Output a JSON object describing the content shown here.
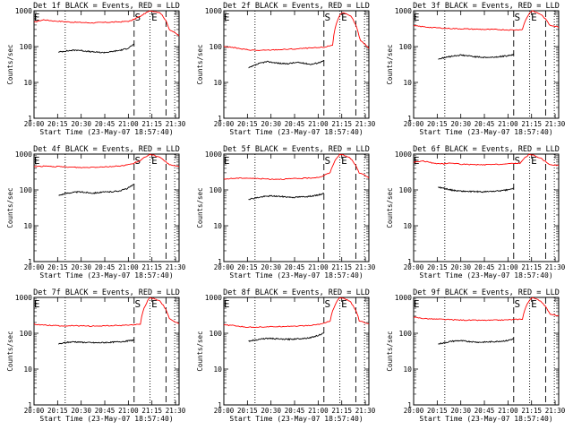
{
  "chart_data": [
    {
      "type": "line",
      "title": "Det 1f BLACK = Events, RED = LLD",
      "xlabel": "Start Time (23-May-07 18:57:40)",
      "ylabel": "Counts/sec",
      "xticks": [
        "20:00",
        "20:15",
        "20:30",
        "20:45",
        "21:00",
        "21:15",
        "21:30"
      ],
      "yticks": [
        "1",
        "10",
        "100",
        "1000"
      ],
      "yscale": "log",
      "ylim": [
        1,
        1000
      ],
      "markers": [
        "S",
        "E",
        "E"
      ],
      "series": [
        {
          "name": "LLD",
          "color": "#ff0000",
          "values": [
            480,
            560,
            520,
            500,
            480,
            470,
            460,
            470,
            480,
            490,
            520,
            700,
            1000,
            900,
            300,
            200
          ]
        },
        {
          "name": "Events",
          "color": "#000000",
          "values": [
            70,
            75,
            78,
            80,
            76,
            72,
            70,
            68,
            70,
            75,
            80,
            90,
            115
          ]
        }
      ]
    },
    {
      "type": "line",
      "title": "Det 2f BLACK = Events, RED = LLD",
      "xlabel": "Start Time (23-May-07 18:57:40)",
      "ylabel": "Counts/sec",
      "xticks": [
        "20:00",
        "20:15",
        "20:30",
        "20:45",
        "21:00",
        "21:15",
        "21:30"
      ],
      "yticks": [
        "1",
        "10",
        "100",
        "1000"
      ],
      "yscale": "log",
      "ylim": [
        1,
        1000
      ],
      "markers": [
        "S",
        "E",
        "E"
      ],
      "series": [
        {
          "name": "LLD",
          "color": "#ff0000",
          "values": [
            100,
            95,
            85,
            80,
            78,
            80,
            82,
            84,
            86,
            90,
            92,
            95,
            110,
            900,
            700,
            150,
            90
          ]
        },
        {
          "name": "Events",
          "color": "#000000",
          "values": [
            25,
            30,
            35,
            38,
            36,
            34,
            33,
            35,
            36,
            34,
            32,
            35,
            40
          ]
        }
      ]
    },
    {
      "type": "line",
      "title": "Det 3f BLACK = Events, RED = LLD",
      "xlabel": "Start Time (23-May-07 18:57:40)",
      "ylabel": "Counts/sec",
      "xticks": [
        "20:00",
        "20:15",
        "20:30",
        "20:45",
        "21:00",
        "21:15",
        "21:30"
      ],
      "yticks": [
        "1",
        "10",
        "100",
        "1000"
      ],
      "yscale": "log",
      "ylim": [
        1,
        1000
      ],
      "markers": [
        "S",
        "E",
        "E"
      ],
      "series": [
        {
          "name": "LLD",
          "color": "#ff0000",
          "values": [
            380,
            360,
            340,
            330,
            320,
            315,
            310,
            305,
            300,
            300,
            295,
            290,
            300,
            1000,
            800,
            400,
            350
          ]
        },
        {
          "name": "Events",
          "color": "#000000",
          "values": [
            45,
            50,
            55,
            58,
            55,
            52,
            50,
            50,
            52,
            55,
            60
          ]
        }
      ]
    },
    {
      "type": "line",
      "title": "Det 4f BLACK = Events, RED = LLD",
      "xlabel": "Start Time (23-May-07 18:57:40)",
      "ylabel": "Counts/sec",
      "xticks": [
        "20:00",
        "20:15",
        "20:30",
        "20:45",
        "21:00",
        "21:15",
        "21:30"
      ],
      "yticks": [
        "1",
        "10",
        "100",
        "1000"
      ],
      "yscale": "log",
      "ylim": [
        1,
        1000
      ],
      "markers": [
        "S",
        "E",
        "E"
      ],
      "series": [
        {
          "name": "LLD",
          "color": "#ff0000",
          "values": [
            450,
            460,
            450,
            440,
            430,
            420,
            430,
            440,
            450,
            470,
            520,
            650,
            1000,
            800,
            500,
            450
          ]
        },
        {
          "name": "Events",
          "color": "#000000",
          "values": [
            70,
            80,
            85,
            88,
            85,
            82,
            85,
            88,
            90,
            95,
            110,
            140
          ]
        }
      ]
    },
    {
      "type": "line",
      "title": "Det 5f BLACK = Events, RED = LLD",
      "xlabel": "Start Time (23-May-07 18:57:40)",
      "ylabel": "Counts/sec",
      "xticks": [
        "20:00",
        "20:15",
        "20:30",
        "20:45",
        "21:00",
        "21:15",
        "21:30"
      ],
      "yticks": [
        "1",
        "10",
        "100",
        "1000"
      ],
      "yscale": "log",
      "ylim": [
        1,
        1000
      ],
      "markers": [
        "S",
        "E",
        "E"
      ],
      "series": [
        {
          "name": "LLD",
          "color": "#ff0000",
          "values": [
            200,
            210,
            215,
            210,
            205,
            200,
            200,
            205,
            210,
            215,
            230,
            300,
            1000,
            800,
            300,
            220
          ]
        },
        {
          "name": "Events",
          "color": "#000000",
          "values": [
            55,
            60,
            65,
            68,
            66,
            64,
            62,
            64,
            66,
            70,
            80
          ]
        }
      ]
    },
    {
      "type": "line",
      "title": "Det 6f BLACK = Events, RED = LLD",
      "xlabel": "Start Time (23-May-07 18:57:40)",
      "ylabel": "Counts/sec",
      "xticks": [
        "20:00",
        "20:15",
        "20:30",
        "20:45",
        "21:00",
        "21:15",
        "21:30"
      ],
      "yticks": [
        "1",
        "10",
        "100",
        "1000"
      ],
      "yscale": "log",
      "ylim": [
        1,
        1000
      ],
      "markers": [
        "S",
        "E",
        "E"
      ],
      "series": [
        {
          "name": "LLD",
          "color": "#ff0000",
          "values": [
            600,
            640,
            560,
            530,
            560,
            520,
            510,
            500,
            510,
            520,
            540,
            560,
            1000,
            800,
            520,
            480
          ]
        },
        {
          "name": "Events",
          "color": "#000000",
          "values": [
            120,
            110,
            100,
            95,
            92,
            90,
            90,
            88,
            90,
            92,
            95,
            100,
            110
          ]
        }
      ]
    },
    {
      "type": "line",
      "title": "Det 7f BLACK = Events, RED = LLD",
      "xlabel": "Start Time (23-May-07 18:57:40)",
      "ylabel": "Counts/sec",
      "xticks": [
        "20:00",
        "20:15",
        "20:30",
        "20:45",
        "21:00",
        "21:15",
        "21:30"
      ],
      "yticks": [
        "1",
        "10",
        "100",
        "1000"
      ],
      "yscale": "log",
      "ylim": [
        1,
        1000
      ],
      "markers": [
        "S",
        "E",
        "E"
      ],
      "series": [
        {
          "name": "LLD",
          "color": "#ff0000",
          "values": [
            180,
            170,
            165,
            160,
            162,
            160,
            158,
            160,
            162,
            165,
            170,
            180,
            1000,
            800,
            250,
            180
          ]
        },
        {
          "name": "Events",
          "color": "#000000",
          "values": [
            50,
            55,
            58,
            56,
            55,
            54,
            55,
            56,
            58,
            60,
            65
          ]
        }
      ]
    },
    {
      "type": "line",
      "title": "Det 8f BLACK = Events, RED = LLD",
      "xlabel": "Start Time (23-May-07 18:57:40)",
      "ylabel": "Counts/sec",
      "xticks": [
        "20:00",
        "20:15",
        "20:30",
        "20:45",
        "21:00",
        "21:15",
        "21:30"
      ],
      "yticks": [
        "1",
        "10",
        "100",
        "1000"
      ],
      "yscale": "log",
      "ylim": [
        1,
        1000
      ],
      "markers": [
        "S",
        "E",
        "E"
      ],
      "series": [
        {
          "name": "LLD",
          "color": "#ff0000",
          "values": [
            170,
            165,
            150,
            148,
            150,
            152,
            155,
            158,
            160,
            165,
            180,
            220,
            1000,
            800,
            220,
            180
          ]
        },
        {
          "name": "Events",
          "color": "#000000",
          "values": [
            60,
            65,
            70,
            72,
            70,
            68,
            68,
            70,
            72,
            75,
            85,
            100
          ]
        }
      ]
    },
    {
      "type": "line",
      "title": "Det 9f BLACK = Events, RED = LLD",
      "xlabel": "Start Time (23-May-07 18:57:40)",
      "ylabel": "Counts/sec",
      "xticks": [
        "20:00",
        "20:15",
        "20:30",
        "20:45",
        "21:00",
        "21:15",
        "21:30"
      ],
      "yticks": [
        "1",
        "10",
        "100",
        "1000"
      ],
      "yscale": "log",
      "ylim": [
        1,
        1000
      ],
      "markers": [
        "S",
        "E",
        "E"
      ],
      "series": [
        {
          "name": "LLD",
          "color": "#ff0000",
          "values": [
            280,
            260,
            250,
            245,
            240,
            235,
            232,
            230,
            230,
            232,
            235,
            240,
            250,
            1000,
            800,
            350,
            300
          ]
        },
        {
          "name": "Events",
          "color": "#000000",
          "values": [
            50,
            55,
            60,
            62,
            60,
            58,
            56,
            57,
            58,
            60,
            62,
            70
          ]
        }
      ]
    }
  ]
}
